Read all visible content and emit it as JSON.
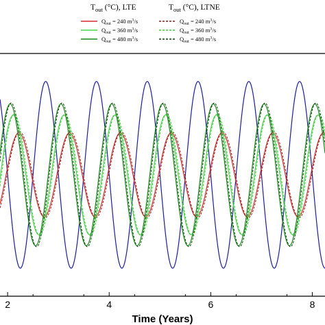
{
  "chart_data": {
    "type": "line",
    "title": "",
    "xlabel": "Time (Years)",
    "ylabel": "",
    "xlim": [
      1.85,
      8.25
    ],
    "ylim": [
      -1.3,
      1.3
    ],
    "x_ticks": [
      2,
      4,
      6,
      8
    ],
    "grid": false,
    "legend": {
      "placement": "top",
      "groups": [
        {
          "title": "T",
          "title_sub": "out",
          "title_rest": " (°C), LTE",
          "entries": [
            {
              "prefix": "Q",
              "sub": "out",
              "text": " = 240 m",
              "sup": "3",
              "suffix": "/s",
              "color": "#d42b2b",
              "dash": ""
            },
            {
              "prefix": "Q",
              "sub": "out",
              "text": " = 360 m",
              "sup": "3",
              "suffix": "/s",
              "color": "#4cd64c",
              "dash": ""
            },
            {
              "prefix": "Q",
              "sub": "out",
              "text": " = 480 m",
              "sup": "3",
              "suffix": "/s",
              "color": "#148a14",
              "dash": ""
            }
          ]
        },
        {
          "title": "T",
          "title_sub": "out",
          "title_rest": " (°C), LTNE",
          "entries": [
            {
              "prefix": "Q",
              "sub": "out",
              "text": " = 240 m",
              "sup": "3",
              "suffix": "/s",
              "color": "#8b1a1a",
              "dash": "3,2"
            },
            {
              "prefix": "Q",
              "sub": "out",
              "text": " = 360 m",
              "sup": "3",
              "suffix": "/s",
              "color": "#3cc83c",
              "dash": "3,2"
            },
            {
              "prefix": "Q",
              "sub": "out",
              "text": " = 480 m",
              "sup": "3",
              "suffix": "/s",
              "color": "#0b3d0b",
              "dash": "3,2"
            }
          ]
        }
      ]
    },
    "series": [
      {
        "key": "inlet",
        "color": "#1c1c9c",
        "dash": "",
        "amplitude": 1.0,
        "phase_years": 2.75,
        "period_years": 1.0,
        "width": 1.2
      },
      {
        "key": "lte240",
        "color": "#d42b2b",
        "dash": "",
        "amplitude": 0.45,
        "phase_years": 2.22,
        "period_years": 1.0,
        "width": 1.2
      },
      {
        "key": "ltne240",
        "color": "#8b1a1a",
        "dash": "3,2",
        "amplitude": 0.46,
        "phase_years": 2.24,
        "period_years": 1.0,
        "width": 1.0
      },
      {
        "key": "lte360",
        "color": "#4cd64c",
        "dash": "",
        "amplitude": 0.64,
        "phase_years": 2.11,
        "period_years": 1.0,
        "width": 1.2
      },
      {
        "key": "ltne360",
        "color": "#3cc83c",
        "dash": "3,2",
        "amplitude": 0.65,
        "phase_years": 2.13,
        "period_years": 1.0,
        "width": 1.0
      },
      {
        "key": "lte480",
        "color": "#148a14",
        "dash": "",
        "amplitude": 0.76,
        "phase_years": 2.05,
        "period_years": 1.0,
        "width": 1.2
      },
      {
        "key": "ltne480",
        "color": "#0b3d0b",
        "dash": "3,2",
        "amplitude": 0.77,
        "phase_years": 2.07,
        "period_years": 1.0,
        "width": 1.0
      }
    ]
  }
}
